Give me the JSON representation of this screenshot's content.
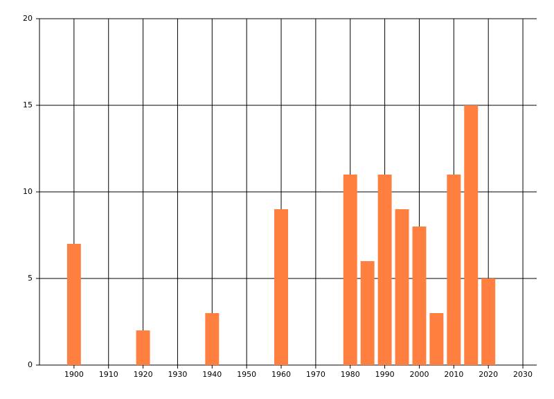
{
  "chart_data": {
    "type": "bar",
    "x": [
      1900,
      1920,
      1940,
      1960,
      1980,
      1985,
      1990,
      1995,
      2000,
      2005,
      2010,
      2015,
      2020
    ],
    "values": [
      7,
      2,
      3,
      9,
      11,
      6,
      11,
      9,
      8,
      3,
      11,
      15,
      5
    ],
    "color": "#ff7f40",
    "xlim": [
      1890,
      2034
    ],
    "xticks": [
      1900,
      1910,
      1920,
      1930,
      1940,
      1950,
      1960,
      1970,
      1980,
      1990,
      2000,
      2010,
      2020,
      2030
    ],
    "ylim": [
      0,
      20
    ],
    "yticks": [
      0,
      5,
      10,
      15,
      20
    ],
    "grid": true
  }
}
